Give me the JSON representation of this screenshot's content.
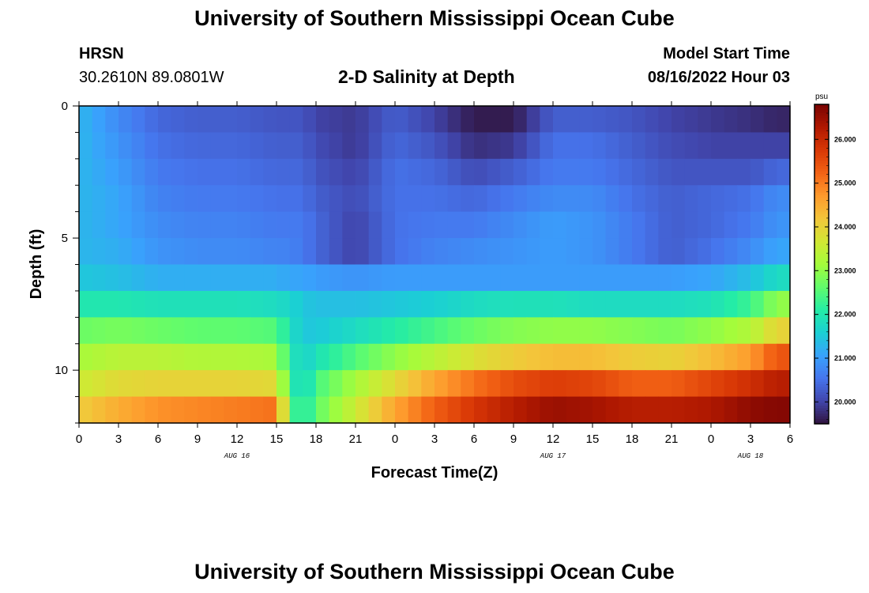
{
  "header": {
    "title": "University of Southern Mississippi Ocean Cube",
    "station": "HRSN",
    "coords": "30.2610N  89.0801W",
    "subtitle": "2-D Salinity at Depth",
    "model_label": "Model Start Time",
    "model_time": "08/16/2022 Hour 03",
    "footer_title": "University of Southern Mississippi Ocean Cube"
  },
  "colorbar": {
    "unit": "psu",
    "min": 19.5,
    "max": 26.8,
    "ticks": [
      "20.000",
      "21.000",
      "22.000",
      "23.000",
      "24.000",
      "25.000",
      "26.000"
    ],
    "colors": [
      "#30123b",
      "#4145ab",
      "#4675ed",
      "#39a2fc",
      "#1bcfd4",
      "#24eca6",
      "#61fc6c",
      "#a4fc3b",
      "#d1e834",
      "#f3c63a",
      "#fe9b2d",
      "#f36315",
      "#d93806",
      "#b11901",
      "#7a0403"
    ]
  },
  "chart_data": {
    "type": "heatmap",
    "xlabel": "Forecast Time(Z)",
    "ylabel": "Depth (ft)",
    "x_tick_labels": [
      "0",
      "3",
      "6",
      "9",
      "12",
      "15",
      "18",
      "21",
      "0",
      "3",
      "6",
      "9",
      "12",
      "15",
      "18",
      "21",
      "0",
      "3",
      "6"
    ],
    "x_range_hours": [
      0,
      54
    ],
    "date_labels": [
      {
        "text": "AUG 16",
        "hour": 12
      },
      {
        "text": "AUG 17",
        "hour": 36
      },
      {
        "text": "AUG 18",
        "hour": 51
      }
    ],
    "y_tick_labels": [
      "0",
      "5",
      "10"
    ],
    "y_tick_values": [
      0,
      5,
      10
    ],
    "y_range": [
      0,
      12
    ],
    "depth_levels": [
      0.5,
      1.5,
      2.5,
      3.5,
      4.5,
      5.5,
      6.5,
      7.5,
      8.5,
      9.5,
      10.5,
      11.5
    ],
    "time_keyframes_hours": [
      0,
      3,
      6,
      9,
      12,
      15,
      16,
      17,
      18,
      21,
      24,
      27,
      30,
      33,
      36,
      39,
      42,
      45,
      48,
      51,
      53,
      54
    ],
    "salinity": [
      [
        21.3,
        20.8,
        20.4,
        20.3,
        20.3,
        20.2,
        20.2,
        20.2,
        20.0,
        19.9,
        20.3,
        20.0,
        19.6,
        19.6,
        20.3,
        20.3,
        20.2,
        20.0,
        19.9,
        19.8,
        19.7,
        19.7
      ],
      [
        21.3,
        20.9,
        20.5,
        20.4,
        20.4,
        20.3,
        20.3,
        20.3,
        20.1,
        19.9,
        20.4,
        20.2,
        19.8,
        19.9,
        20.5,
        20.5,
        20.3,
        20.1,
        20.0,
        20.0,
        20.0,
        20.0
      ],
      [
        21.3,
        21.0,
        20.6,
        20.5,
        20.5,
        20.4,
        20.4,
        20.4,
        20.2,
        20.0,
        20.5,
        20.4,
        20.1,
        20.3,
        20.6,
        20.6,
        20.4,
        20.2,
        20.2,
        20.2,
        20.4,
        20.4
      ],
      [
        21.3,
        21.1,
        20.7,
        20.6,
        20.6,
        20.5,
        20.5,
        20.5,
        20.3,
        20.1,
        20.5,
        20.5,
        20.4,
        20.6,
        20.8,
        20.8,
        20.5,
        20.3,
        20.4,
        20.5,
        20.8,
        20.8
      ],
      [
        21.3,
        21.1,
        20.8,
        20.7,
        20.7,
        20.6,
        20.6,
        20.6,
        20.4,
        20.0,
        20.5,
        20.6,
        20.6,
        20.8,
        21.0,
        20.9,
        20.6,
        20.3,
        20.4,
        20.6,
        20.9,
        20.9
      ],
      [
        21.3,
        21.2,
        20.9,
        20.8,
        20.8,
        20.7,
        20.7,
        20.6,
        20.4,
        20.0,
        20.5,
        20.7,
        20.8,
        20.9,
        21.0,
        20.9,
        20.6,
        20.3,
        20.5,
        20.8,
        21.1,
        21.1
      ],
      [
        21.5,
        21.4,
        21.2,
        21.2,
        21.2,
        21.2,
        21.1,
        21.1,
        21.0,
        20.9,
        21.0,
        21.0,
        21.0,
        21.0,
        21.0,
        21.0,
        21.0,
        21.0,
        21.1,
        21.4,
        21.8,
        21.8
      ],
      [
        22.0,
        22.0,
        21.9,
        21.9,
        21.9,
        21.8,
        21.7,
        21.5,
        21.4,
        21.4,
        21.5,
        21.6,
        21.8,
        21.9,
        21.9,
        21.8,
        21.8,
        21.8,
        21.9,
        22.3,
        23.0,
        23.0
      ],
      [
        22.7,
        22.8,
        22.7,
        22.6,
        22.6,
        22.5,
        21.9,
        21.5,
        21.5,
        21.8,
        22.1,
        22.4,
        22.7,
        22.9,
        23.0,
        23.0,
        22.9,
        22.8,
        23.0,
        23.3,
        24.0,
        24.0
      ],
      [
        23.2,
        23.4,
        23.4,
        23.3,
        23.3,
        23.2,
        22.1,
        21.6,
        21.9,
        22.5,
        23.0,
        23.4,
        23.8,
        24.1,
        24.3,
        24.3,
        24.1,
        24.0,
        24.3,
        24.7,
        25.4,
        25.4
      ],
      [
        23.6,
        23.9,
        24.0,
        24.0,
        24.0,
        23.9,
        22.3,
        21.6,
        22.4,
        23.2,
        23.9,
        24.6,
        25.1,
        25.5,
        25.7,
        25.6,
        25.3,
        25.3,
        25.6,
        25.9,
        26.2,
        26.2
      ],
      [
        24.1,
        24.5,
        24.8,
        24.9,
        25.0,
        25.1,
        22.6,
        21.9,
        22.6,
        23.6,
        24.6,
        25.3,
        25.8,
        26.2,
        26.5,
        26.4,
        26.2,
        26.2,
        26.3,
        26.6,
        26.7,
        26.7
      ]
    ]
  }
}
